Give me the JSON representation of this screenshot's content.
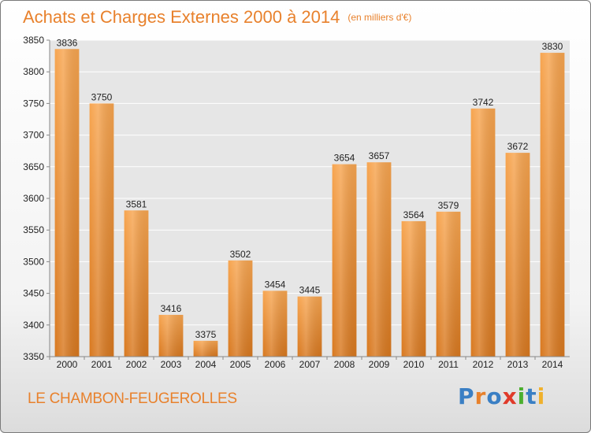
{
  "header": {
    "title": "Achats et Charges Externes 2000 à 2014",
    "unit": "(en milliers d'€)"
  },
  "footer": {
    "place": "LE CHAMBON-FEUGEROLLES",
    "logo": "Proxiti"
  },
  "colors": {
    "accent": "#e8812c",
    "bar_top": "#f7a550",
    "bar_bottom": "#d8781f",
    "logo_letters": [
      "#3a7fc4",
      "#e8812c",
      "#3a7fc4",
      "#e03a2a",
      "#4caf2f",
      "#3a7fc4",
      "#f0b12c"
    ]
  },
  "chart_data": {
    "type": "bar",
    "title": "Achats et Charges Externes 2000 à 2014",
    "subtitle": "(en milliers d'€)",
    "xlabel": "",
    "ylabel": "",
    "categories": [
      "2000",
      "2001",
      "2002",
      "2003",
      "2004",
      "2005",
      "2006",
      "2007",
      "2008",
      "2009",
      "2010",
      "2011",
      "2012",
      "2013",
      "2014"
    ],
    "values": [
      3836,
      3750,
      3581,
      3416,
      3375,
      3502,
      3454,
      3445,
      3654,
      3657,
      3564,
      3579,
      3742,
      3672,
      3830
    ],
    "ylim": [
      3350,
      3850
    ],
    "yticks": [
      3350,
      3400,
      3450,
      3500,
      3550,
      3600,
      3650,
      3700,
      3750,
      3800,
      3850
    ],
    "grid": true,
    "legend": "none"
  }
}
